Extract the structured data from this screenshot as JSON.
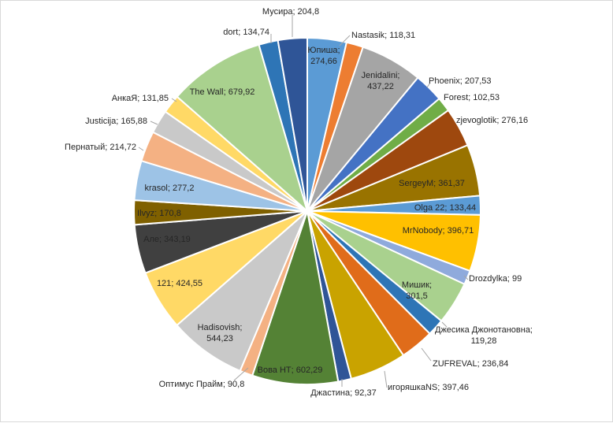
{
  "chart_data": {
    "type": "pie",
    "title": "",
    "legend": "none",
    "slices": [
      {
        "name": "Юпиша",
        "value": 274.66,
        "label": "Юпиша;\n274,66",
        "color": "#5b9bd5",
        "label_pos": "inside"
      },
      {
        "name": "Nastasik",
        "value": 118.31,
        "label": "Nastasik; 118,31",
        "color": "#ed7d31",
        "label_pos": "outside"
      },
      {
        "name": "Jenidalini",
        "value": 437.22,
        "label": "Jenidalini;\n437,22",
        "color": "#a5a5a5",
        "label_pos": "inside"
      },
      {
        "name": "Phoenix",
        "value": 207.53,
        "label": "Phoenix; 207,53",
        "color": "#4472c4",
        "label_pos": "outside"
      },
      {
        "name": "Forest",
        "value": 102.53,
        "label": "Forest; 102,53",
        "color": "#70ad47",
        "label_pos": "outside"
      },
      {
        "name": "zjevoglotik",
        "value": 276.16,
        "label": "zjevoglotik; 276,16",
        "color": "#9e480e",
        "label_pos": "outside"
      },
      {
        "name": "SergeyM",
        "value": 361.37,
        "label": "SergeyM; 361,37",
        "color": "#997300",
        "label_pos": "inside"
      },
      {
        "name": "Olga 22",
        "value": 133.44,
        "label": "Olga 22; 133,44",
        "color": "#5b9bd5",
        "label_pos": "inside"
      },
      {
        "name": "MrNobody",
        "value": 396.71,
        "label": "MrNobody; 396,71",
        "color": "#ffc000",
        "label_pos": "inside"
      },
      {
        "name": "Drozdylka",
        "value": 99,
        "label": "Drozdylka; 99",
        "color": "#8faadc",
        "label_pos": "outside"
      },
      {
        "name": "Мишик",
        "value": 301.5,
        "label": "Мишик;\n301,5",
        "color": "#a9d18e",
        "label_pos": "inside"
      },
      {
        "name": "Джесика Джонотановна",
        "value": 119.28,
        "label": "Джесика Джонотановна;\n119,28",
        "color": "#2e75b6",
        "label_pos": "outside"
      },
      {
        "name": "ZUFREVAL",
        "value": 236.84,
        "label": "ZUFREVAL; 236,84",
        "color": "#e06c1a",
        "label_pos": "outside"
      },
      {
        "name": "игоряшкаNS",
        "value": 397.46,
        "label": "игоряшкаNS; 397,46",
        "color": "#c9a300",
        "label_pos": "outside"
      },
      {
        "name": "Джастина",
        "value": 92.37,
        "label": "Джастина; 92,37",
        "color": "#2f5597",
        "label_pos": "outside"
      },
      {
        "name": "Вова НТ",
        "value": 602.29,
        "label": "Вова НТ; 602,29",
        "color": "#548235",
        "label_pos": "inside"
      },
      {
        "name": "Оптимус Прайм",
        "value": 90.8,
        "label": "Оптимус Прайм; 90,8",
        "color": "#f4b183",
        "label_pos": "outside"
      },
      {
        "name": "Hadisovish",
        "value": 544.23,
        "label": "Hadisovish;\n544,23",
        "color": "#c9c9c9",
        "label_pos": "inside"
      },
      {
        "name": "121",
        "value": 424.55,
        "label": "121; 424,55",
        "color": "#ffd966",
        "label_pos": "inside"
      },
      {
        "name": "Але",
        "value": 343.19,
        "label": "Але; 343,19",
        "color": "#404040",
        "label_pos": "inside"
      },
      {
        "name": "Ilvyz",
        "value": 170.8,
        "label": "Ilvyz; 170,8",
        "color": "#7f6000",
        "label_pos": "inside"
      },
      {
        "name": "krasol",
        "value": 277.2,
        "label": "krasol; 277,2",
        "color": "#9dc3e6",
        "label_pos": "inside"
      },
      {
        "name": "Пернатый",
        "value": 214.72,
        "label": "Пернатый; 214,72",
        "color": "#f4b183",
        "label_pos": "outside"
      },
      {
        "name": "Justicija",
        "value": 165.88,
        "label": "Justicija; 165,88",
        "color": "#c9c9c9",
        "label_pos": "outside"
      },
      {
        "name": "АнкаЯ",
        "value": 131.85,
        "label": "АнкаЯ; 131,85",
        "color": "#ffd966",
        "label_pos": "outside"
      },
      {
        "name": "The Wall",
        "value": 679.92,
        "label": "The Wall; 679,92",
        "color": "#a9d18e",
        "label_pos": "inside"
      },
      {
        "name": "dort",
        "value": 134.74,
        "label": "dort; 134,74",
        "color": "#2e75b6",
        "label_pos": "outside"
      },
      {
        "name": "Мусира",
        "value": 204.8,
        "label": "Мусира; 204,8",
        "color": "#2f5597",
        "label_pos": "outside"
      }
    ]
  }
}
